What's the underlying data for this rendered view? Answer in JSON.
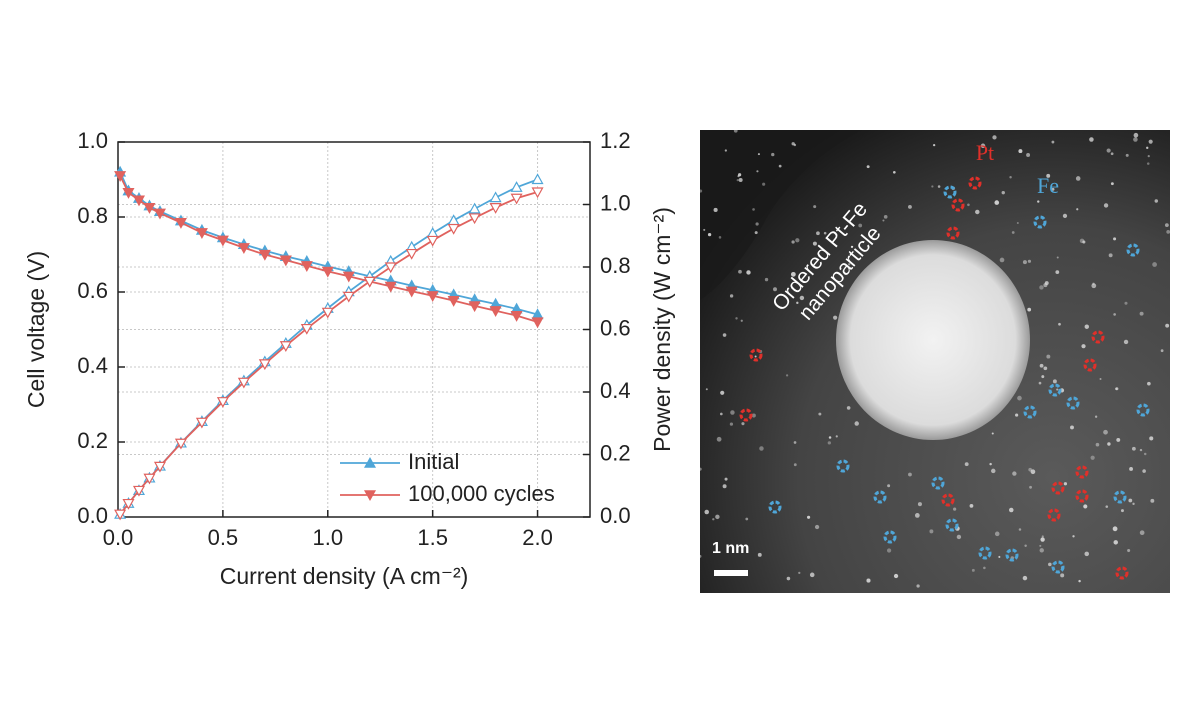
{
  "chart_data": {
    "type": "line",
    "x_label": "Current density (A cm⁻²)",
    "y_label": "Cell voltage (V)",
    "y2_label": "Power density (W cm⁻²)",
    "xlim": [
      0,
      2.25
    ],
    "xticks": [
      {
        "value": 0,
        "label": "0.0"
      },
      0.5,
      {
        "value": 1,
        "label": "1.0"
      },
      1.5,
      {
        "value": 2,
        "label": "2.0"
      }
    ],
    "ylim": [
      0,
      1
    ],
    "yticks": [
      {
        "value": 0,
        "label": "0.0"
      },
      0.2,
      0.4,
      0.6,
      0.8,
      {
        "value": 1,
        "label": "1.0"
      }
    ],
    "y2lim": [
      0,
      1.2
    ],
    "y2ticks": [
      {
        "value": 0,
        "label": "0.0"
      },
      0.2,
      0.4,
      0.6,
      0.8,
      {
        "value": 1,
        "label": "1.0"
      },
      1.2
    ],
    "grid": true,
    "legend": "lower-right",
    "x": [
      0.01,
      0.05,
      0.1,
      0.15,
      0.2,
      0.3,
      0.4,
      0.5,
      0.6,
      0.7,
      0.8,
      0.9,
      1.0,
      1.1,
      1.2,
      1.3,
      1.4,
      1.5,
      1.6,
      1.7,
      1.8,
      1.9,
      2.0
    ],
    "series": [
      {
        "name": "Initial",
        "color": "#4fa6d8",
        "marker": "up",
        "values": [
          0.92,
          0.87,
          0.85,
          0.83,
          0.815,
          0.79,
          0.765,
          0.745,
          0.727,
          0.71,
          0.695,
          0.682,
          0.668,
          0.655,
          0.642,
          0.63,
          0.617,
          0.605,
          0.593,
          0.58,
          0.568,
          0.555,
          0.54
        ],
        "y2_values": [
          0.009,
          0.044,
          0.085,
          0.125,
          0.163,
          0.237,
          0.306,
          0.373,
          0.436,
          0.497,
          0.556,
          0.614,
          0.668,
          0.721,
          0.77,
          0.819,
          0.864,
          0.908,
          0.949,
          0.986,
          1.022,
          1.055,
          1.08
        ]
      },
      {
        "name": "100,000 cycles",
        "color": "#e0625e",
        "marker": "down",
        "values": [
          0.91,
          0.865,
          0.845,
          0.825,
          0.81,
          0.785,
          0.758,
          0.738,
          0.718,
          0.7,
          0.685,
          0.67,
          0.655,
          0.642,
          0.628,
          0.615,
          0.602,
          0.59,
          0.577,
          0.563,
          0.55,
          0.537,
          0.52
        ],
        "y2_values": [
          0.009,
          0.043,
          0.085,
          0.124,
          0.162,
          0.236,
          0.303,
          0.369,
          0.431,
          0.49,
          0.548,
          0.603,
          0.655,
          0.706,
          0.754,
          0.8,
          0.843,
          0.885,
          0.923,
          0.957,
          0.99,
          1.02,
          1.04
        ]
      }
    ]
  },
  "micrograph": {
    "pt_label": "Pt",
    "fe_label": "Fe",
    "particle_label": [
      "Ordered Pt-Fe",
      "nanoparticle"
    ],
    "scale_label": "1 nm"
  }
}
